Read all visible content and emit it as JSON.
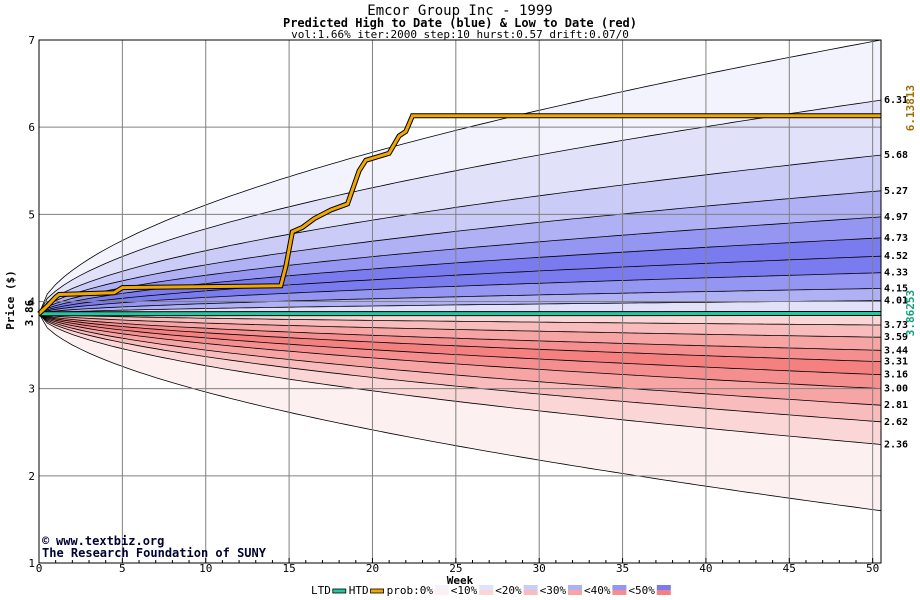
{
  "chart_data": {
    "type": "area",
    "title": "Emcor Group Inc - 1999",
    "subtitle": "Predicted High to Date (blue) &  Low to Date (red)",
    "params": "vol:1.66% iter:2000 step:10 hurst:0.57 drift:0.07/0",
    "xlabel": "Week",
    "ylabel": "Price ($)",
    "xlim": [
      0,
      50.5
    ],
    "ylim": [
      1,
      7
    ],
    "xticks": [
      0,
      5,
      10,
      15,
      20,
      25,
      30,
      35,
      40,
      45,
      50
    ],
    "yticks": [
      1,
      2,
      3,
      4,
      5,
      6,
      7
    ],
    "start_price": 3.86,
    "start_label": "3.86",
    "grid": true,
    "legend_position": "bottom",
    "high_quantiles": [
      {
        "end": 7.0,
        "fill": "#f3f3fd"
      },
      {
        "end": 6.31,
        "label": "6.31",
        "fill": "#e1e1f9"
      },
      {
        "end": 5.68,
        "label": "5.68",
        "fill": "#cbcbf7"
      },
      {
        "end": 5.27,
        "label": "5.27",
        "fill": "#b0b0f4"
      },
      {
        "end": 4.97,
        "label": "4.97",
        "fill": "#9595f2"
      },
      {
        "end": 4.73,
        "label": "4.73",
        "fill": "#7b7bf0"
      },
      {
        "end": 4.52,
        "label": "4.52",
        "fill": "#7b7bf0"
      },
      {
        "end": 4.33,
        "label": "4.33",
        "fill": "#9595f2"
      },
      {
        "end": 4.15,
        "label": "4.15",
        "fill": "#b0b0f4"
      },
      {
        "end": 4.01,
        "label": "4.01",
        "fill": "#e1e1f9"
      }
    ],
    "low_quantiles": [
      {
        "end": 1.6,
        "fill": "#fdf0f0"
      },
      {
        "end": 2.36,
        "label": "2.36",
        "fill": "#fbd6d6"
      },
      {
        "end": 2.62,
        "label": "2.62",
        "fill": "#f9bcbc"
      },
      {
        "end": 2.81,
        "label": "2.81",
        "fill": "#f7a4a4"
      },
      {
        "end": 3.0,
        "label": "3.00",
        "fill": "#f58e8e"
      },
      {
        "end": 3.16,
        "label": "3.16",
        "fill": "#f48080"
      },
      {
        "end": 3.31,
        "label": "3.31",
        "fill": "#f58e8e"
      },
      {
        "end": 3.44,
        "label": "3.44",
        "fill": "#f7a4a4"
      },
      {
        "end": 3.59,
        "label": "3.59",
        "fill": "#f9bcbc"
      },
      {
        "end": 3.73,
        "label": "3.73",
        "fill": "#fbd6d6"
      }
    ],
    "htd_series": {
      "x": [
        0,
        0.5,
        1,
        1.2,
        4.5,
        5,
        14.5,
        14.8,
        15.2,
        15.8,
        16.5,
        17.5,
        18.5,
        19.2,
        19.6,
        21,
        21.6,
        22,
        22.4,
        50.5
      ],
      "y": [
        3.86,
        3.95,
        4.05,
        4.08,
        4.1,
        4.16,
        4.18,
        4.4,
        4.8,
        4.85,
        4.95,
        5.05,
        5.12,
        5.5,
        5.62,
        5.7,
        5.9,
        5.95,
        6.13,
        6.13
      ],
      "end_value": 6.13813,
      "end_label": "6.13813",
      "color": "#f0a800"
    },
    "ltd_series": {
      "x": [
        0,
        2,
        4.5,
        50.5
      ],
      "y": [
        3.86,
        3.86,
        3.86,
        3.862
      ],
      "end_value": 3.86253,
      "end_label": "3.86253",
      "color": "#22c8a0"
    },
    "legend": {
      "ltd": "LTD",
      "htd": "HTD",
      "prob": "prob:0%",
      "bins": [
        "<10%",
        "<20%",
        "<30%",
        "<40%",
        "<50%"
      ],
      "bin_colors": [
        "#f3f3fd",
        "#e1e1f9",
        "#cbcbf7",
        "#b0b0f4",
        "#9595f2",
        "#7b7bf0"
      ],
      "bin_colors_low": [
        "#fdf0f0",
        "#fbd6d6",
        "#f9bcbc",
        "#f7a4a4",
        "#f58e8e",
        "#f48080"
      ]
    },
    "credits": [
      "www.textbiz.org",
      "The Research Foundation of SUNY"
    ]
  }
}
